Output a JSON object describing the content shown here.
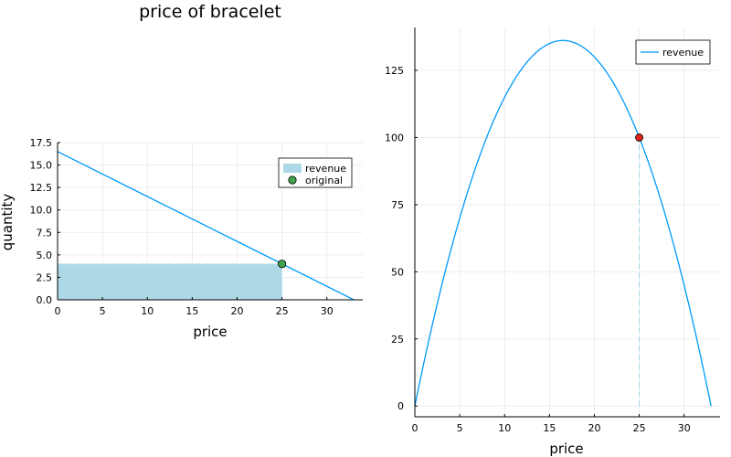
{
  "chart_data": [
    {
      "type": "line",
      "title": "price of bracelet",
      "xlabel": "price",
      "ylabel": "quantity",
      "xlim": [
        0,
        34
      ],
      "ylim": [
        0,
        17.5
      ],
      "xticks": [
        0,
        5,
        10,
        15,
        20,
        25,
        30
      ],
      "xtick_labels": [
        "0",
        "5",
        "10",
        "15",
        "20",
        "25",
        "30"
      ],
      "yticks": [
        0,
        2.5,
        5,
        7.5,
        10,
        12.5,
        15,
        17.5
      ],
      "ytick_labels": [
        "0.0",
        "2.5",
        "5.0",
        "7.5",
        "10.0",
        "12.5",
        "15.0",
        "17.5"
      ],
      "grid": true,
      "legend": "top-right",
      "demand_line": {
        "x": [
          0,
          33
        ],
        "y": [
          16.5,
          0
        ],
        "color": "#009af9"
      },
      "revenue_rect": {
        "name": "revenue",
        "x": [
          0,
          25
        ],
        "y": [
          0,
          4
        ],
        "color": "#add8e6"
      },
      "point": {
        "name": "original",
        "x": 25,
        "y": 4,
        "color": "#3ea44e"
      }
    },
    {
      "type": "line",
      "title": "",
      "xlabel": "price",
      "ylabel": "",
      "xlim": [
        0,
        34
      ],
      "ylim": [
        -4,
        141
      ],
      "xticks": [
        0,
        5,
        10,
        15,
        20,
        25,
        30
      ],
      "xtick_labels": [
        "0",
        "5",
        "10",
        "15",
        "20",
        "25",
        "30"
      ],
      "yticks": [
        0,
        25,
        50,
        75,
        100,
        125
      ],
      "ytick_labels": [
        "0",
        "25",
        "50",
        "75",
        "100",
        "125"
      ],
      "grid": true,
      "legend": "top-right",
      "series": [
        {
          "name": "revenue",
          "formula": "p * (16.5 - 0.5 * p)",
          "x_range": [
            0,
            33
          ],
          "color": "#009af9"
        }
      ],
      "vline": {
        "x": 25,
        "y": [
          0,
          100
        ],
        "color": "#add8e6",
        "style": "dashed"
      },
      "point": {
        "x": 25,
        "y": 100,
        "color": "#e0201b"
      }
    }
  ]
}
